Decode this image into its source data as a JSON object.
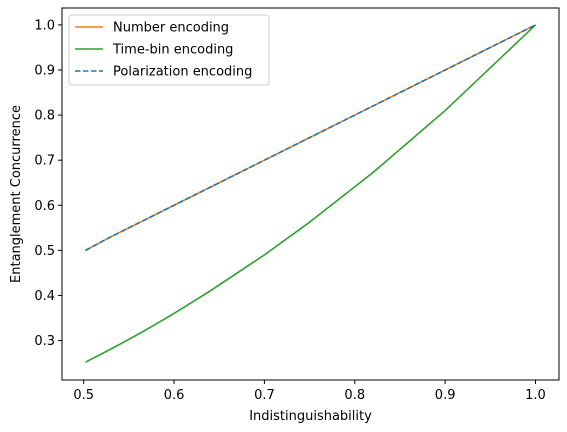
{
  "chart_data": {
    "type": "line",
    "title": "",
    "xlabel": "Indistinguishability",
    "ylabel": "Entanglement Concurrence",
    "xlim": [
      0.476,
      1.026
    ],
    "ylim": [
      0.2125,
      1.0375
    ],
    "xticks": [
      0.5,
      0.6,
      0.7,
      0.8,
      0.9,
      1.0
    ],
    "xtick_labels": [
      "0.5",
      "0.6",
      "0.7",
      "0.8",
      "0.9",
      "1.0"
    ],
    "yticks": [
      0.3,
      0.4,
      0.5,
      0.6,
      0.7,
      0.8,
      0.9,
      1.0
    ],
    "ytick_labels": [
      "0.3",
      "0.4",
      "0.5",
      "0.6",
      "0.7",
      "0.8",
      "0.9",
      "1.0"
    ],
    "grid": false,
    "legend_position": "top-left",
    "series": [
      {
        "name": "Number encoding",
        "color": "#ff7f0e",
        "dash": "solid",
        "x": [
          0.502,
          0.53,
          0.565,
          0.6,
          0.64,
          0.7,
          0.75,
          0.82,
          0.9,
          1.0
        ],
        "y": [
          0.5,
          0.53,
          0.565,
          0.6,
          0.64,
          0.7,
          0.75,
          0.82,
          0.9,
          1.0
        ]
      },
      {
        "name": "Time-bin encoding",
        "color": "#2ca02c",
        "dash": "solid",
        "x": [
          0.502,
          0.53,
          0.565,
          0.6,
          0.64,
          0.7,
          0.75,
          0.82,
          0.9,
          1.0
        ],
        "y": [
          0.252,
          0.281,
          0.319,
          0.36,
          0.41,
          0.49,
          0.5625,
          0.6724,
          0.81,
          1.0
        ]
      },
      {
        "name": "Polarization encoding",
        "color": "#1f77b4",
        "dash": "dashed",
        "x": [
          0.502,
          0.53,
          0.565,
          0.6,
          0.64,
          0.7,
          0.75,
          0.82,
          0.9,
          1.0
        ],
        "y": [
          0.5,
          0.53,
          0.565,
          0.6,
          0.64,
          0.7,
          0.75,
          0.82,
          0.9,
          1.0
        ]
      }
    ]
  }
}
